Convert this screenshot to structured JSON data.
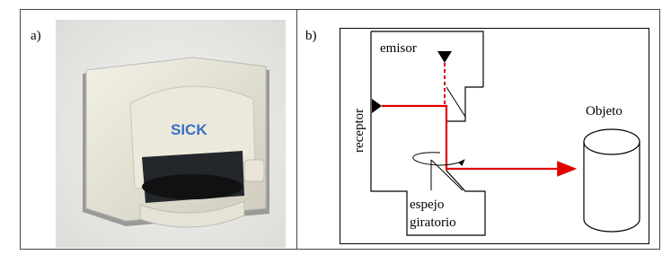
{
  "panel_a": {
    "label": "a)",
    "logo": "SICK"
  },
  "panel_b": {
    "label": "b)",
    "emitter": "emisor",
    "receiver": "receptor",
    "object": "Objeto",
    "mirror": [
      "espejo",
      "giratorio"
    ]
  }
}
